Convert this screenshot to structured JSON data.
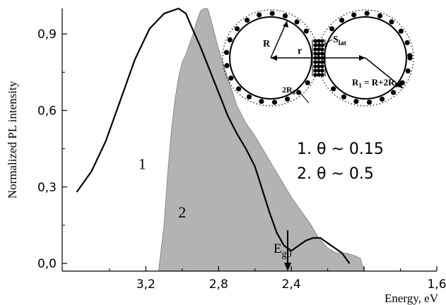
{
  "chart_data": {
    "type": "area",
    "title": "",
    "xlabel": "Energy, eV",
    "ylabel": "Normalized PL intensity",
    "xlim": [
      3.66,
      1.6
    ],
    "ylim": [
      -0.03,
      1.0
    ],
    "x_reversed": true,
    "x_ticks": [
      3.2,
      2.8,
      2.4,
      2.0,
      1.6
    ],
    "x_tick_labels": [
      "3,2",
      "2,8",
      "2,4",
      "",
      "1,6"
    ],
    "y_ticks": [
      0.0,
      0.3,
      0.6,
      0.9
    ],
    "y_tick_labels": [
      "0,0",
      "0,3",
      "0,6",
      "0,9"
    ],
    "grid": false,
    "series": [
      {
        "name": "1",
        "style": "line",
        "color": "#000000",
        "points": [
          [
            3.58,
            0.28
          ],
          [
            3.5,
            0.36
          ],
          [
            3.42,
            0.48
          ],
          [
            3.34,
            0.64
          ],
          [
            3.26,
            0.8
          ],
          [
            3.18,
            0.92
          ],
          [
            3.1,
            0.98
          ],
          [
            3.02,
            1.0
          ],
          [
            2.98,
            0.98
          ],
          [
            2.95,
            0.93
          ],
          [
            2.9,
            0.85
          ],
          [
            2.85,
            0.76
          ],
          [
            2.8,
            0.67
          ],
          [
            2.75,
            0.58
          ],
          [
            2.7,
            0.51
          ],
          [
            2.65,
            0.45
          ],
          [
            2.6,
            0.38
          ],
          [
            2.56,
            0.29
          ],
          [
            2.52,
            0.2
          ],
          [
            2.48,
            0.12
          ],
          [
            2.44,
            0.07
          ],
          [
            2.4,
            0.05
          ],
          [
            2.36,
            0.07
          ],
          [
            2.32,
            0.09
          ],
          [
            2.28,
            0.1
          ],
          [
            2.24,
            0.1
          ],
          [
            2.2,
            0.08
          ],
          [
            2.16,
            0.06
          ],
          [
            2.12,
            0.04
          ],
          [
            2.08,
            0.0
          ]
        ]
      },
      {
        "name": "2",
        "style": "area",
        "color": "#b3b3b3",
        "points": [
          [
            3.13,
            -0.03
          ],
          [
            3.12,
            0.03
          ],
          [
            3.1,
            0.15
          ],
          [
            3.08,
            0.35
          ],
          [
            3.06,
            0.52
          ],
          [
            3.04,
            0.64
          ],
          [
            3.02,
            0.73
          ],
          [
            3.0,
            0.79
          ],
          [
            2.98,
            0.82
          ],
          [
            2.96,
            0.86
          ],
          [
            2.94,
            0.9
          ],
          [
            2.92,
            0.95
          ],
          [
            2.9,
            0.99
          ],
          [
            2.88,
            1.0
          ],
          [
            2.86,
            1.0
          ],
          [
            2.84,
            0.95
          ],
          [
            2.8,
            0.84
          ],
          [
            2.75,
            0.73
          ],
          [
            2.7,
            0.62
          ],
          [
            2.65,
            0.55
          ],
          [
            2.6,
            0.5
          ],
          [
            2.55,
            0.44
          ],
          [
            2.5,
            0.38
          ],
          [
            2.45,
            0.32
          ],
          [
            2.4,
            0.26
          ],
          [
            2.35,
            0.21
          ],
          [
            2.3,
            0.16
          ],
          [
            2.25,
            0.1
          ],
          [
            2.2,
            0.06
          ],
          [
            2.15,
            0.04
          ],
          [
            2.1,
            0.04
          ],
          [
            2.05,
            0.03
          ],
          [
            2.02,
            0.02
          ],
          [
            2.0,
            -0.03
          ]
        ]
      }
    ],
    "annotations": {
      "curve_labels": [
        {
          "text": "1",
          "x": 3.22,
          "y": 0.37
        },
        {
          "text": "2",
          "x": 3.0,
          "y": 0.18
        }
      ],
      "legend_lines": [
        "1. θ ~ 0.15",
        "2. θ ~ 0.5"
      ],
      "edge_arrow": {
        "x": 2.42,
        "y_from": 0.13,
        "y_to": -0.03
      },
      "edge_label_main": "E",
      "edge_label_sub": "g0",
      "inset_labels": {
        "R": "R",
        "r": "r",
        "S_main": "S",
        "S_sub": "lat",
        "twoR0_main": "2R",
        "twoR0_sub": "0",
        "R1_main": "R",
        "R1_sub": "1",
        "R1_rest": " = R+2R",
        "R1_rest_sub": "0"
      }
    }
  }
}
